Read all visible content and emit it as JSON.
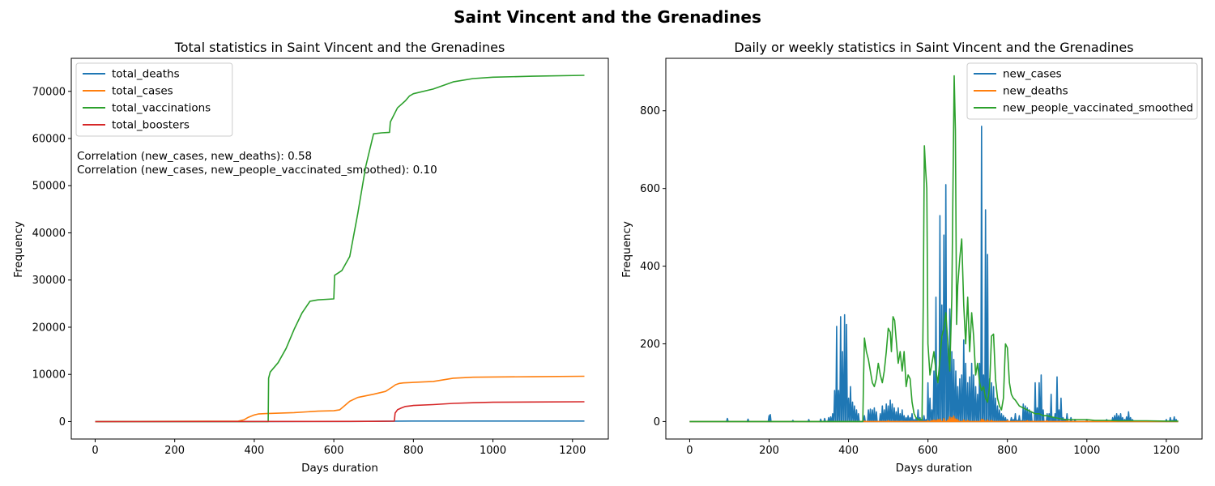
{
  "figure": {
    "suptitle": "Saint Vincent and the Grenadines"
  },
  "chart_data": [
    {
      "type": "line",
      "title": "Total statistics in Saint Vincent and the Grenadines",
      "xlabel": "Days duration",
      "ylabel": "Frequency",
      "xlim": [
        -60,
        1290
      ],
      "ylim": [
        -3700,
        77000
      ],
      "xticks": [
        0,
        200,
        400,
        600,
        800,
        1000,
        1200
      ],
      "yticks": [
        0,
        10000,
        20000,
        30000,
        40000,
        50000,
        60000,
        70000
      ],
      "legend_position": "top-left",
      "grid": false,
      "annotations": [
        "Correlation (new_cases, new_deaths): 0.58",
        "Correlation (new_cases, new_people_vaccinated_smoothed): 0.10"
      ],
      "series": [
        {
          "name": "total_deaths",
          "color": "#1f77b4",
          "x": [
            0,
            400,
            640,
            800,
            1000,
            1230
          ],
          "y": [
            0,
            0,
            20,
            106,
            115,
            120
          ]
        },
        {
          "name": "total_cases",
          "color": "#ff7f0e",
          "x": [
            0,
            360,
            375,
            385,
            400,
            410,
            430,
            500,
            560,
            600,
            615,
            625,
            640,
            660,
            700,
            730,
            745,
            755,
            765,
            775,
            800,
            850,
            900,
            950,
            1000,
            1100,
            1230
          ],
          "y": [
            0,
            100,
            400,
            900,
            1400,
            1600,
            1700,
            1900,
            2200,
            2300,
            2500,
            3200,
            4300,
            5100,
            5800,
            6400,
            7200,
            7800,
            8100,
            8200,
            8300,
            8500,
            9200,
            9400,
            9450,
            9500,
            9600
          ]
        },
        {
          "name": "total_vaccinations",
          "color": "#2ca02c",
          "x": [
            0,
            435,
            436,
            440,
            460,
            480,
            500,
            520,
            540,
            560,
            600,
            602,
            620,
            640,
            660,
            670,
            680,
            690,
            700,
            720,
            740,
            742,
            760,
            780,
            790,
            800,
            850,
            900,
            950,
            1000,
            1100,
            1230
          ],
          "y": [
            0,
            0,
            9200,
            10500,
            12500,
            15500,
            19500,
            23000,
            25500,
            25800,
            26000,
            31000,
            32000,
            35000,
            44000,
            49000,
            54000,
            57500,
            61000,
            61200,
            61300,
            63500,
            66500,
            68000,
            69000,
            69500,
            70500,
            72000,
            72700,
            73000,
            73200,
            73400
          ]
        },
        {
          "name": "total_boosters",
          "color": "#d62728",
          "x": [
            0,
            700,
            752,
            754,
            760,
            770,
            780,
            800,
            850,
            900,
            950,
            1000,
            1100,
            1230
          ],
          "y": [
            0,
            50,
            100,
            1800,
            2500,
            2900,
            3200,
            3400,
            3600,
            3850,
            4000,
            4100,
            4150,
            4200
          ]
        }
      ]
    },
    {
      "type": "line",
      "title": "Daily or weekly statistics in Saint Vincent and the Grenadines",
      "xlabel": "Days duration",
      "ylabel": "Frequency",
      "xlim": [
        -60,
        1290
      ],
      "ylim": [
        -45,
        935
      ],
      "xticks": [
        0,
        200,
        400,
        600,
        800,
        1000,
        1200
      ],
      "yticks": [
        0,
        200,
        400,
        600,
        800
      ],
      "legend_position": "top-right",
      "grid": false,
      "series": [
        {
          "name": "new_cases",
          "color": "#1f77b4",
          "spikes": [
            [
              95,
              8
            ],
            [
              147,
              6
            ],
            [
              200,
              15
            ],
            [
              203,
              18
            ],
            [
              260,
              3
            ],
            [
              300,
              5
            ],
            [
              330,
              6
            ],
            [
              340,
              8
            ],
            [
              350,
              10
            ],
            [
              355,
              12
            ],
            [
              360,
              20
            ],
            [
              365,
              80
            ],
            [
              370,
              245
            ],
            [
              375,
              80
            ],
            [
              380,
              270
            ],
            [
              385,
              180
            ],
            [
              390,
              275
            ],
            [
              395,
              250
            ],
            [
              400,
              60
            ],
            [
              405,
              90
            ],
            [
              410,
              50
            ],
            [
              415,
              40
            ],
            [
              420,
              30
            ],
            [
              425,
              20
            ],
            [
              440,
              15
            ],
            [
              450,
              30
            ],
            [
              455,
              32
            ],
            [
              460,
              30
            ],
            [
              465,
              35
            ],
            [
              470,
              25
            ],
            [
              480,
              20
            ],
            [
              485,
              40
            ],
            [
              490,
              30
            ],
            [
              495,
              45
            ],
            [
              500,
              40
            ],
            [
              505,
              55
            ],
            [
              510,
              45
            ],
            [
              515,
              35
            ],
            [
              520,
              25
            ],
            [
              525,
              35
            ],
            [
              530,
              20
            ],
            [
              535,
              30
            ],
            [
              540,
              15
            ],
            [
              545,
              10
            ],
            [
              550,
              15
            ],
            [
              555,
              10
            ],
            [
              560,
              20
            ],
            [
              565,
              5
            ],
            [
              570,
              8
            ],
            [
              575,
              30
            ],
            [
              580,
              10
            ],
            [
              585,
              5
            ],
            [
              590,
              15
            ],
            [
              595,
              5
            ],
            [
              600,
              100
            ],
            [
              605,
              60
            ],
            [
              610,
              30
            ],
            [
              615,
              130
            ],
            [
              620,
              320
            ],
            [
              625,
              100
            ],
            [
              630,
              530
            ],
            [
              635,
              300
            ],
            [
              640,
              480
            ],
            [
              645,
              610
            ],
            [
              650,
              200
            ],
            [
              655,
              290
            ],
            [
              660,
              180
            ],
            [
              665,
              160
            ],
            [
              670,
              130
            ],
            [
              675,
              90
            ],
            [
              680,
              110
            ],
            [
              685,
              120
            ],
            [
              690,
              210
            ],
            [
              695,
              150
            ],
            [
              700,
              100
            ],
            [
              705,
              115
            ],
            [
              710,
              150
            ],
            [
              715,
              120
            ],
            [
              720,
              90
            ],
            [
              725,
              70
            ],
            [
              730,
              150
            ],
            [
              735,
              760
            ],
            [
              740,
              120
            ],
            [
              745,
              545
            ],
            [
              750,
              430
            ],
            [
              755,
              110
            ],
            [
              760,
              100
            ],
            [
              765,
              90
            ],
            [
              770,
              60
            ],
            [
              775,
              40
            ],
            [
              780,
              30
            ],
            [
              785,
              20
            ],
            [
              790,
              15
            ],
            [
              795,
              10
            ],
            [
              800,
              5
            ],
            [
              810,
              10
            ],
            [
              815,
              5
            ],
            [
              820,
              20
            ],
            [
              825,
              3
            ],
            [
              830,
              15
            ],
            [
              835,
              2
            ],
            [
              840,
              45
            ],
            [
              845,
              40
            ],
            [
              850,
              35
            ],
            [
              855,
              30
            ],
            [
              860,
              25
            ],
            [
              870,
              100
            ],
            [
              875,
              35
            ],
            [
              880,
              100
            ],
            [
              885,
              120
            ],
            [
              890,
              30
            ],
            [
              900,
              20
            ],
            [
              905,
              20
            ],
            [
              910,
              70
            ],
            [
              915,
              10
            ],
            [
              920,
              20
            ],
            [
              925,
              115
            ],
            [
              930,
              30
            ],
            [
              935,
              60
            ],
            [
              940,
              10
            ],
            [
              945,
              5
            ],
            [
              950,
              20
            ],
            [
              960,
              10
            ],
            [
              970,
              5
            ],
            [
              1000,
              5
            ],
            [
              1050,
              5
            ],
            [
              1065,
              10
            ],
            [
              1070,
              15
            ],
            [
              1075,
              20
            ],
            [
              1080,
              15
            ],
            [
              1085,
              20
            ],
            [
              1090,
              10
            ],
            [
              1095,
              5
            ],
            [
              1100,
              12
            ],
            [
              1105,
              25
            ],
            [
              1110,
              10
            ],
            [
              1115,
              5
            ],
            [
              1200,
              5
            ],
            [
              1210,
              10
            ],
            [
              1215,
              3
            ],
            [
              1220,
              12
            ],
            [
              1225,
              5
            ]
          ]
        },
        {
          "name": "new_deaths",
          "color": "#ff7f0e",
          "spikes": [
            [
              440,
              1
            ],
            [
              500,
              2
            ],
            [
              600,
              2
            ],
            [
              610,
              3
            ],
            [
              615,
              4
            ],
            [
              620,
              3
            ],
            [
              625,
              5
            ],
            [
              630,
              6
            ],
            [
              640,
              8
            ],
            [
              650,
              4
            ],
            [
              655,
              12
            ],
            [
              660,
              10
            ],
            [
              665,
              14
            ],
            [
              670,
              7
            ],
            [
              675,
              5
            ],
            [
              690,
              4
            ],
            [
              700,
              3
            ],
            [
              735,
              6
            ],
            [
              740,
              5
            ],
            [
              750,
              4
            ],
            [
              760,
              3
            ],
            [
              800,
              2
            ],
            [
              850,
              2
            ],
            [
              900,
              2
            ],
            [
              950,
              1
            ],
            [
              1000,
              1
            ]
          ]
        },
        {
          "name": "new_people_vaccinated_smoothed",
          "color": "#2ca02c",
          "x": [
            0,
            436,
            438,
            440,
            445,
            450,
            455,
            460,
            465,
            470,
            475,
            480,
            485,
            490,
            495,
            500,
            505,
            508,
            512,
            516,
            520,
            525,
            530,
            535,
            540,
            545,
            550,
            555,
            560,
            565,
            570,
            575,
            580,
            585,
            588,
            591,
            594,
            597,
            600,
            605,
            610,
            615,
            620,
            625,
            630,
            635,
            640,
            645,
            650,
            655,
            660,
            663,
            666,
            669,
            672,
            675,
            680,
            685,
            690,
            695,
            700,
            705,
            710,
            715,
            720,
            725,
            730,
            735,
            740,
            745,
            750,
            755,
            760,
            765,
            770,
            775,
            780,
            785,
            790,
            795,
            800,
            805,
            810,
            815,
            820,
            830,
            840,
            850,
            860,
            870,
            880,
            890,
            900,
            910,
            920,
            930,
            940,
            950,
            970,
            1000,
            1020,
            1050,
            1080,
            1100,
            1150,
            1200,
            1230
          ],
          "y": [
            0,
            0,
            120,
            215,
            180,
            160,
            130,
            100,
            90,
            110,
            150,
            120,
            100,
            130,
            180,
            240,
            230,
            180,
            270,
            260,
            210,
            150,
            180,
            130,
            180,
            90,
            120,
            110,
            50,
            20,
            10,
            5,
            5,
            5,
            300,
            710,
            650,
            600,
            200,
            120,
            150,
            180,
            130,
            100,
            160,
            220,
            240,
            280,
            200,
            130,
            320,
            600,
            890,
            750,
            250,
            350,
            420,
            470,
            300,
            200,
            320,
            180,
            280,
            220,
            120,
            150,
            100,
            80,
            90,
            60,
            50,
            90,
            220,
            225,
            110,
            60,
            40,
            30,
            60,
            200,
            190,
            100,
            70,
            60,
            55,
            40,
            35,
            30,
            25,
            20,
            20,
            15,
            15,
            12,
            10,
            8,
            6,
            5,
            5,
            5,
            3,
            3,
            2,
            2,
            2,
            1,
            1
          ]
        }
      ]
    }
  ]
}
